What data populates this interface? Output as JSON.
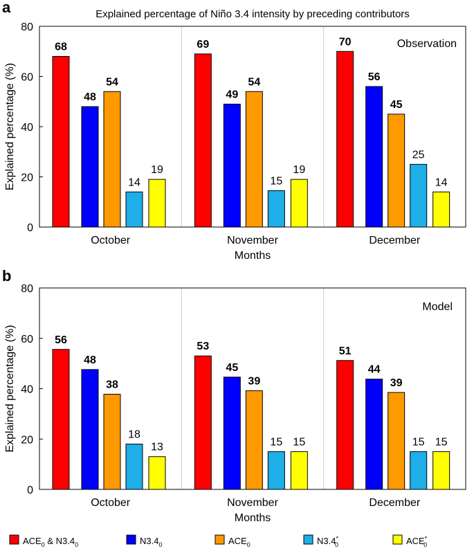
{
  "colors": {
    "combined": "#ff0000",
    "n34": "#0000ff",
    "ace": "#ff9900",
    "n34_star": "#1eaee8",
    "ace_star": "#ffff00",
    "label_gray": "#8c8c8c"
  },
  "legend": [
    {
      "key": "combined",
      "base": "ACE",
      "sub": "0",
      "mid": " & N3.4",
      "sub2": "0",
      "sup": ""
    },
    {
      "key": "n34",
      "base": "N3.4",
      "sub": "0",
      "mid": "",
      "sub2": "",
      "sup": ""
    },
    {
      "key": "ace",
      "base": "ACE",
      "sub": "0",
      "mid": "",
      "sub2": "",
      "sup": ""
    },
    {
      "key": "n34_star",
      "base": "N3.4",
      "sub": "0",
      "mid": "",
      "sub2": "",
      "sup": "*"
    },
    {
      "key": "ace_star",
      "base": "ACE",
      "sub": "0",
      "mid": "",
      "sub2": "",
      "sup": "*"
    }
  ],
  "chart_data": [
    {
      "panel": "a",
      "type": "bar",
      "title": "Explained percentage of Niño 3.4 intensity by preceding contributors",
      "annotation": "Observation",
      "xlabel": "Months",
      "ylabel": "Explained percentage (%)",
      "ylim": [
        0,
        80
      ],
      "yticks": [
        "0",
        "20",
        "40",
        "60",
        "80"
      ],
      "categories": [
        "October",
        "November",
        "December"
      ],
      "series": [
        {
          "key": "combined",
          "values": [
            68,
            69,
            70
          ],
          "labels": [
            "68",
            "69",
            "70"
          ],
          "bold": [
            true,
            true,
            true
          ],
          "gray": [
            false,
            false,
            false
          ]
        },
        {
          "key": "n34",
          "values": [
            48,
            49,
            56
          ],
          "labels": [
            "48",
            "49",
            "56"
          ],
          "bold": [
            true,
            true,
            true
          ],
          "gray": [
            false,
            false,
            false
          ]
        },
        {
          "key": "ace",
          "values": [
            54,
            54,
            45
          ],
          "labels": [
            "54",
            "54",
            "45"
          ],
          "bold": [
            true,
            true,
            true
          ],
          "gray": [
            false,
            false,
            false
          ]
        },
        {
          "key": "n34_star",
          "values": [
            14,
            14.5,
            25
          ],
          "labels": [
            "14",
            "15",
            "25"
          ],
          "bold": [
            false,
            false,
            false
          ],
          "gray": [
            false,
            false,
            false
          ]
        },
        {
          "key": "ace_star",
          "values": [
            19,
            19,
            14
          ],
          "labels": [
            "19",
            "19",
            "14"
          ],
          "bold": [
            false,
            false,
            false
          ],
          "gray": [
            false,
            false,
            false
          ]
        }
      ]
    },
    {
      "panel": "b",
      "type": "bar",
      "title": "",
      "annotation": "Model",
      "xlabel": "Months",
      "ylabel": "Explained percentage (%)",
      "ylim": [
        0,
        80
      ],
      "yticks": [
        "0",
        "20",
        "40",
        "60",
        "80"
      ],
      "categories": [
        "October",
        "November",
        "December"
      ],
      "series": [
        {
          "key": "combined",
          "values": [
            55.6,
            53,
            51.2
          ],
          "labels": [
            "56",
            "53",
            "51"
          ],
          "bold": [
            true,
            true,
            true
          ],
          "gray": [
            false,
            false,
            false
          ]
        },
        {
          "key": "n34",
          "values": [
            47.6,
            44.6,
            43.8
          ],
          "labels": [
            "48",
            "45",
            "44"
          ],
          "bold": [
            true,
            true,
            true
          ],
          "gray": [
            false,
            false,
            false
          ]
        },
        {
          "key": "ace",
          "values": [
            37.8,
            39.2,
            38.5
          ],
          "labels": [
            "38",
            "39",
            "39"
          ],
          "bold": [
            true,
            true,
            true
          ],
          "gray": [
            true,
            false,
            false
          ]
        },
        {
          "key": "n34_star",
          "values": [
            18,
            15,
            15
          ],
          "labels": [
            "18",
            "15",
            "15"
          ],
          "bold": [
            false,
            false,
            false
          ],
          "gray": [
            false,
            false,
            false
          ]
        },
        {
          "key": "ace_star",
          "values": [
            13,
            15,
            15
          ],
          "labels": [
            "13",
            "15",
            "15"
          ],
          "bold": [
            false,
            false,
            false
          ],
          "gray": [
            false,
            false,
            false
          ]
        }
      ]
    }
  ]
}
